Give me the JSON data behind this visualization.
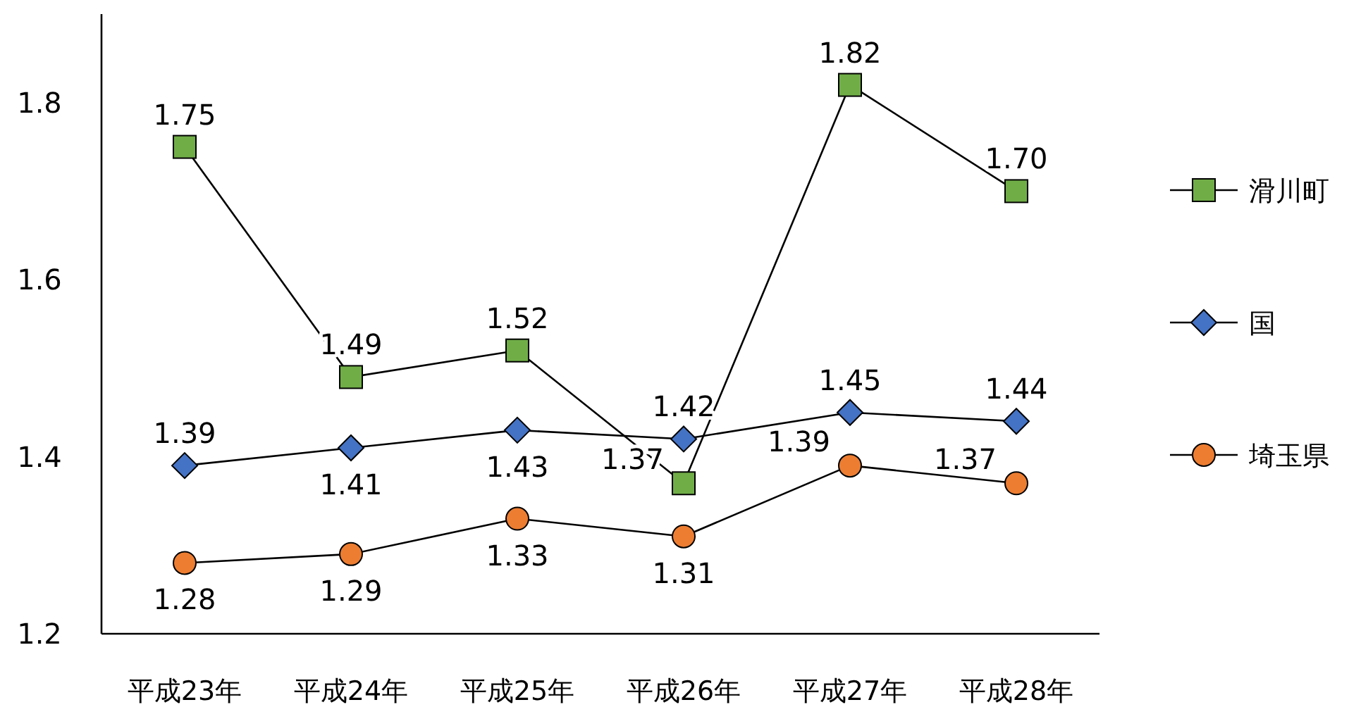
{
  "chart_data": {
    "type": "line",
    "categories": [
      "平成23年",
      "平成24年",
      "平成25年",
      "平成26年",
      "平成27年",
      "平成28年"
    ],
    "series": [
      {
        "name": "滑川町",
        "color": "#70ad47",
        "marker": "square",
        "values": [
          1.75,
          1.49,
          1.52,
          1.37,
          1.82,
          1.7
        ],
        "value_labels": [
          "1.75",
          "1.49",
          "1.52",
          "1.37",
          "1.82",
          "1.70"
        ]
      },
      {
        "name": "国",
        "color": "#4472c4",
        "marker": "diamond",
        "values": [
          1.39,
          1.41,
          1.43,
          1.42,
          1.45,
          1.44
        ],
        "value_labels": [
          "1.39",
          "1.41",
          "1.43",
          "1.42",
          "1.45",
          "1.44"
        ]
      },
      {
        "name": "埼玉県",
        "color": "#ed7d31",
        "marker": "circle",
        "values": [
          1.28,
          1.29,
          1.33,
          1.31,
          1.39,
          1.37
        ],
        "value_labels": [
          "1.28",
          "1.29",
          "1.33",
          "1.31",
          "1.39",
          "1.37"
        ]
      }
    ],
    "ylim": [
      1.2,
      1.9
    ],
    "yticks": [
      1.2,
      1.4,
      1.6,
      1.8
    ],
    "legend": "right",
    "grid": false
  }
}
